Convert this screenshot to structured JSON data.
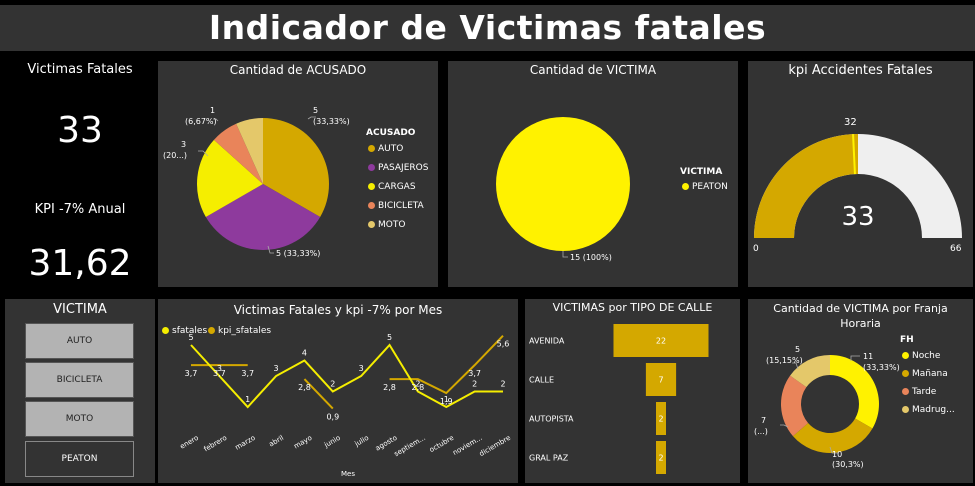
{
  "header": {
    "title": "Indicador de Victimas fatales"
  },
  "kpis": {
    "victimas_label": "Victimas Fatales",
    "victimas_value": "33",
    "kpi_label": "KPI -7% Anual",
    "kpi_value": "31,62"
  },
  "colors": {
    "auto": "#d4a800",
    "pasajeros": "#8e3a9d",
    "cargas": "#f5ee00",
    "bicicleta": "#e9845a",
    "moto": "#e4c86a",
    "peaton": "#fff200",
    "panel": "#333333",
    "gauge_track": "#efefef"
  },
  "acusado_chart": {
    "title": "Cantidad de ACUSADO",
    "legend_title": "ACUSADO",
    "labels": {
      "auto": [
        "5",
        "(33,33%)"
      ],
      "pasajeros": "5 (33,33%)",
      "cargas": [
        "3",
        "(20...)"
      ],
      "bicicleta": [
        "1",
        "(6,67%)"
      ]
    }
  },
  "victima_chart": {
    "title": "Cantidad de VICTIMA",
    "legend_title": "VICTIMA",
    "label": "15 (100%)"
  },
  "gauge": {
    "title": "kpi Accidentes Fatales",
    "value": "33",
    "target_label": "32",
    "min": "0",
    "max": "66"
  },
  "slicer": {
    "title": "VICTIMA",
    "buttons": [
      "AUTO",
      "BICICLETA",
      "MOTO",
      "PEATON"
    ]
  },
  "line_chart": {
    "title": "Victimas Fatales y kpi -7% por Mes",
    "legend": [
      "sfatales",
      "kpi_sfatales"
    ],
    "xlabel": "Mes"
  },
  "street_chart": {
    "title": "VICTIMAS por TIPO DE CALLE"
  },
  "franja_chart": {
    "title": "Cantidad de VICTIMA por Franja Horaria",
    "legend_title": "FH",
    "labels": {
      "noche": [
        "11",
        "(33,33%)"
      ],
      "manana": [
        "10",
        "(30,3%)"
      ],
      "tarde": [
        "7",
        "(...)"
      ],
      "madrugada": [
        "5",
        "(15,15%)"
      ]
    }
  },
  "chart_data": [
    {
      "type": "pie",
      "title": "Cantidad de ACUSADO",
      "categories": [
        "AUTO",
        "PASAJEROS",
        "CARGAS",
        "BICICLETA",
        "MOTO"
      ],
      "values": [
        5,
        5,
        3,
        1,
        1
      ],
      "legend": "right"
    },
    {
      "type": "pie",
      "title": "Cantidad de VICTIMA",
      "categories": [
        "PEATON"
      ],
      "values": [
        15
      ],
      "legend": "right"
    },
    {
      "type": "gauge",
      "title": "kpi Accidentes Fatales",
      "value": 33,
      "target": 32,
      "min": 0,
      "max": 66
    },
    {
      "type": "line",
      "title": "Victimas Fatales y kpi -7% por Mes",
      "xlabel": "Mes",
      "categories": [
        "enero",
        "febrero",
        "marzo",
        "abril",
        "mayo",
        "junio",
        "julio",
        "agosto",
        "septiem...",
        "octubre",
        "noviem...",
        "diciembre"
      ],
      "series": [
        {
          "name": "sfatales",
          "values": [
            5,
            3,
            1,
            3,
            4,
            2,
            3,
            5,
            2,
            1,
            2,
            2
          ],
          "labels": [
            "5",
            "3",
            "1",
            "3",
            "4",
            "2",
            "3",
            "5",
            "2",
            "1",
            "2",
            "2"
          ]
        },
        {
          "name": "kpi_sfatales",
          "values": [
            3.7,
            3.7,
            3.7,
            null,
            2.8,
            0.9,
            null,
            2.8,
            2.8,
            1.9,
            3.7,
            5.6
          ],
          "labels": [
            "3,7",
            "3,7",
            "3,7",
            "",
            "2,8",
            "0,9",
            "",
            "2,8",
            "2,8",
            "1,9",
            "3,7",
            "5,6"
          ]
        }
      ],
      "legend": "top-left"
    },
    {
      "type": "bar",
      "title": "VICTIMAS por TIPO DE CALLE",
      "categories": [
        "AVENIDA",
        "CALLE",
        "AUTOPISTA",
        "GRAL PAZ"
      ],
      "values": [
        22,
        7,
        2,
        2
      ]
    },
    {
      "type": "pie",
      "title": "Cantidad de VICTIMA por Franja Horaria",
      "categories": [
        "Noche",
        "Mañana",
        "Tarde",
        "Madrug..."
      ],
      "values": [
        11,
        10,
        7,
        5
      ],
      "legend": "right"
    }
  ]
}
